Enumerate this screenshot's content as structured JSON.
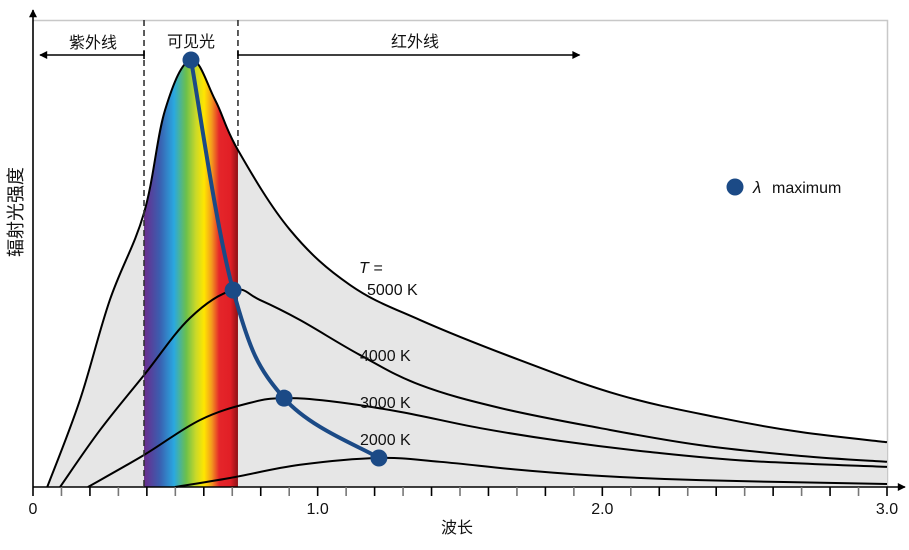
{
  "chart_data": {
    "type": "line",
    "title": "",
    "xlabel": "波长",
    "ylabel": "辐射光强度",
    "xlim": [
      0,
      3.0
    ],
    "ylim": [
      0,
      1.05
    ],
    "x_tick_labels": [
      {
        "value": 0,
        "label": "0"
      },
      {
        "value": 1.0,
        "label": "1.0"
      },
      {
        "value": 2.0,
        "label": "2.0"
      },
      {
        "value": 3.0,
        "label": "3.0"
      }
    ],
    "minor_tick_step": 0.1,
    "grid": false,
    "regions": [
      {
        "name": "ultraviolet",
        "label": "紫外线",
        "from": 0,
        "to": 0.39,
        "arrow": "left"
      },
      {
        "name": "visible",
        "label": "可见光",
        "from": 0.39,
        "to": 0.72
      },
      {
        "name": "infrared",
        "label": "红外线",
        "from": 0.72,
        "to": 1.92,
        "arrow": "right"
      }
    ],
    "series": [
      {
        "name": "5000 K",
        "label_prefix": "T =",
        "label": "5000 K",
        "x": [
          0.05,
          0.165,
          0.27,
          0.39,
          0.464,
          0.555,
          0.64,
          0.72,
          0.903,
          1.114,
          1.36,
          1.711,
          2.062,
          2.413,
          2.694,
          3.0
        ],
        "y": [
          0.0,
          0.204,
          0.438,
          0.642,
          0.883,
          1.0,
          0.906,
          0.789,
          0.602,
          0.473,
          0.391,
          0.297,
          0.215,
          0.162,
          0.129,
          0.105
        ],
        "peak": {
          "x": 0.555,
          "y": 1.0
        }
      },
      {
        "name": "4000 K",
        "label": "4000 K",
        "x": [
          0.095,
          0.235,
          0.39,
          0.552,
          0.703,
          0.797,
          0.938,
          1.149,
          1.36,
          1.641,
          1.992,
          2.343,
          2.694,
          3.0
        ],
        "y": [
          0.0,
          0.133,
          0.262,
          0.396,
          0.461,
          0.438,
          0.391,
          0.309,
          0.239,
          0.185,
          0.138,
          0.098,
          0.073,
          0.059
        ],
        "peak": {
          "x": 0.703,
          "y": 0.461
        }
      },
      {
        "name": "3000 K",
        "label": "3000 K",
        "x": [
          0.193,
          0.39,
          0.587,
          0.762,
          0.882,
          1.043,
          1.29,
          1.57,
          1.851,
          2.168,
          2.519,
          3.0
        ],
        "y": [
          0.0,
          0.075,
          0.157,
          0.197,
          0.208,
          0.201,
          0.176,
          0.138,
          0.108,
          0.082,
          0.061,
          0.047
        ],
        "peak": {
          "x": 0.882,
          "y": 0.208
        }
      },
      {
        "name": "2000 K",
        "label": "2000 K",
        "x": [
          0.499,
          0.692,
          0.938,
          1.215,
          1.43,
          1.711,
          1.992,
          2.343,
          3.0
        ],
        "y": [
          0.0,
          0.021,
          0.052,
          0.068,
          0.059,
          0.04,
          0.026,
          0.016,
          0.007
        ],
        "peak": {
          "x": 1.215,
          "y": 0.068
        }
      }
    ],
    "lambda_max_series": {
      "name": "λ maximum",
      "x": [
        0.555,
        0.703,
        0.882,
        1.215
      ],
      "y": [
        1.0,
        0.461,
        0.208,
        0.068
      ]
    },
    "legend": {
      "position": "right",
      "symbol": "λ",
      "label": "maximum"
    },
    "colors": {
      "curve": "#000000",
      "fill": "#e6e6e6",
      "lambda_max": "#1b4a86",
      "frame": "#c8c8c8",
      "spectrum": [
        "#6a2c8e",
        "#3a5fb0",
        "#2aa8e0",
        "#6cc04a",
        "#c8d82a",
        "#ffe600",
        "#f39a1e",
        "#e5262a",
        "#e11f26",
        "#8e1116"
      ]
    }
  }
}
